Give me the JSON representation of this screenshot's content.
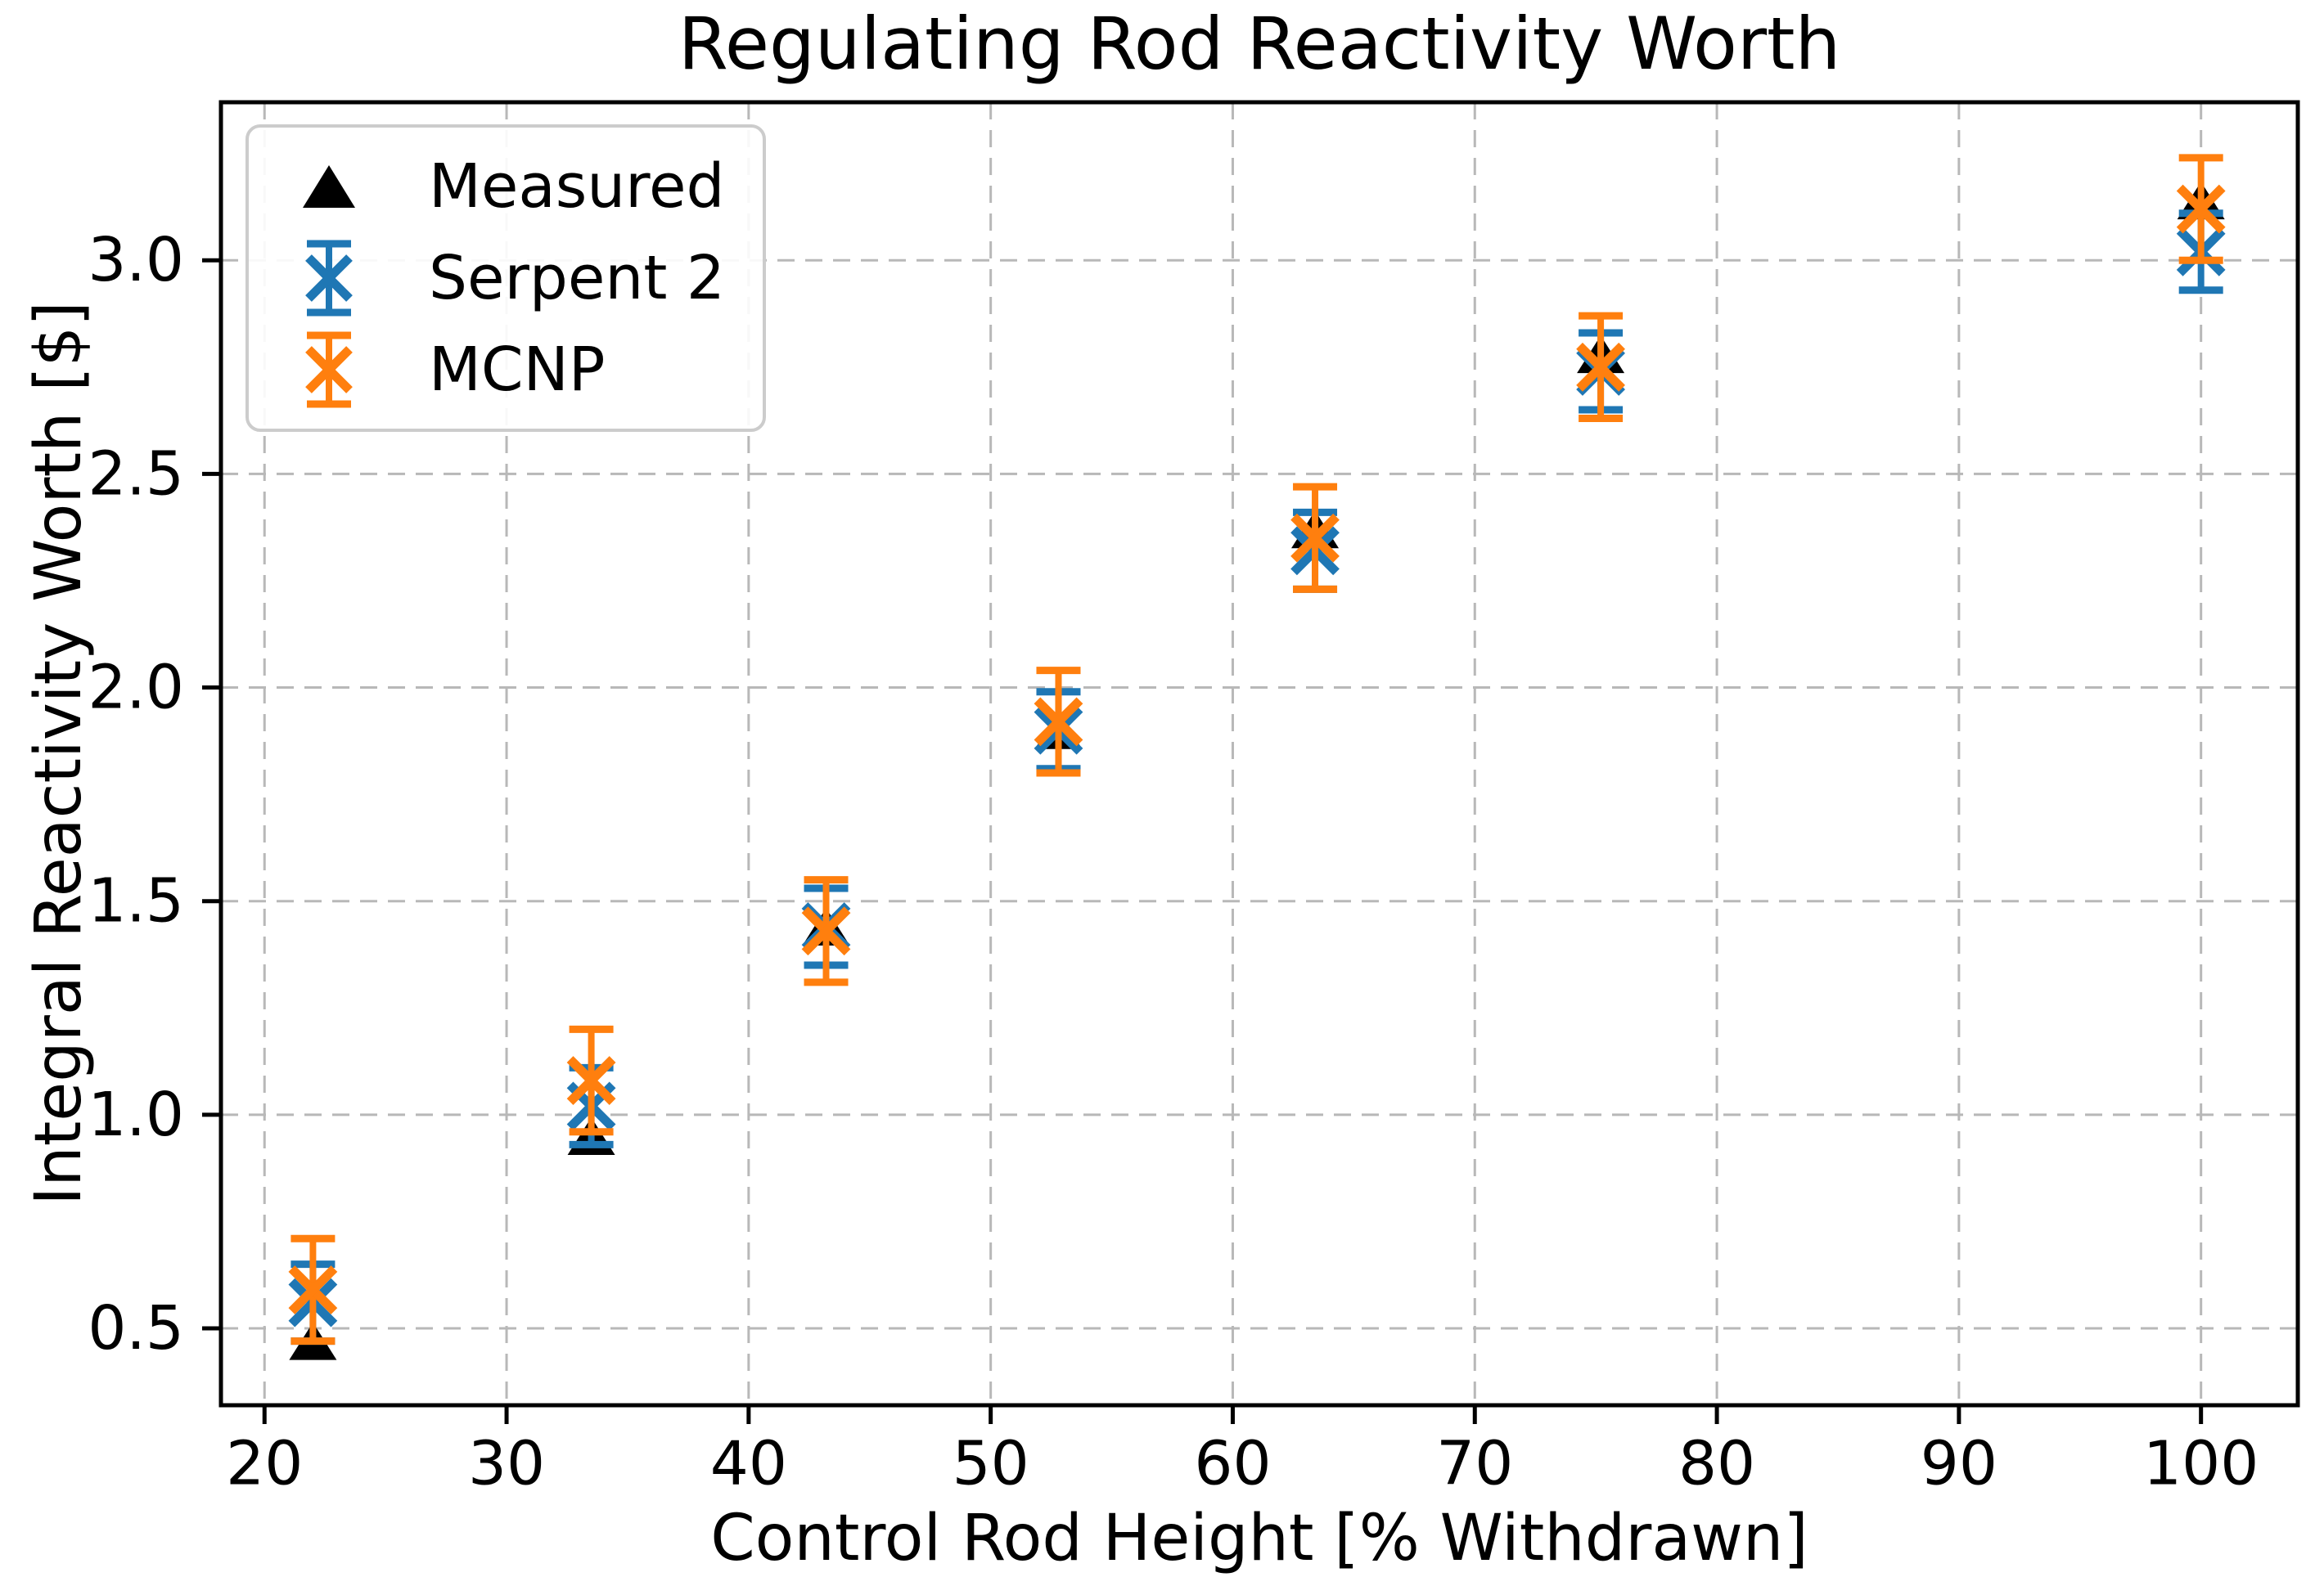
{
  "chart_data": {
    "type": "scatter",
    "title": "Regulating Rod Reactivity Worth",
    "xlabel": "Control Rod Height [% Withdrawn]",
    "ylabel": "Integral Reactivity Worth [$]",
    "xlim": [
      18.2,
      104.0
    ],
    "ylim": [
      0.32,
      3.37
    ],
    "xticks": [
      20,
      30,
      40,
      50,
      60,
      70,
      80,
      90,
      100
    ],
    "xtick_labels": [
      "20",
      "30",
      "40",
      "50",
      "60",
      "70",
      "80",
      "90",
      "100"
    ],
    "yticks": [
      0.5,
      1.0,
      1.5,
      2.0,
      2.5,
      3.0
    ],
    "ytick_labels": [
      "0.5",
      "1.0",
      "1.5",
      "2.0",
      "2.5",
      "3.0"
    ],
    "grid": true,
    "grid_color": "#b8b8b8",
    "legend_position": "upper-left",
    "x": [
      22,
      33.5,
      43.2,
      52.8,
      63.4,
      75.2,
      100
    ],
    "series": [
      {
        "name": "Measured",
        "marker": "triangle",
        "color": "#000000",
        "values": [
          0.47,
          0.95,
          1.44,
          1.9,
          2.37,
          2.78,
          3.14
        ],
        "errors": null
      },
      {
        "name": "Serpent 2",
        "marker": "x-errorbar",
        "color": "#1f77b4",
        "values": [
          0.56,
          1.02,
          1.44,
          1.9,
          2.32,
          2.74,
          3.02
        ],
        "errors": [
          0.09,
          0.09,
          0.09,
          0.09,
          0.09,
          0.09,
          0.09
        ]
      },
      {
        "name": "MCNP",
        "marker": "x-errorbar",
        "color": "#ff7f0e",
        "values": [
          0.59,
          1.08,
          1.43,
          1.92,
          2.35,
          2.75,
          3.12
        ],
        "errors": [
          0.12,
          0.12,
          0.12,
          0.12,
          0.12,
          0.12,
          0.12
        ]
      }
    ]
  }
}
